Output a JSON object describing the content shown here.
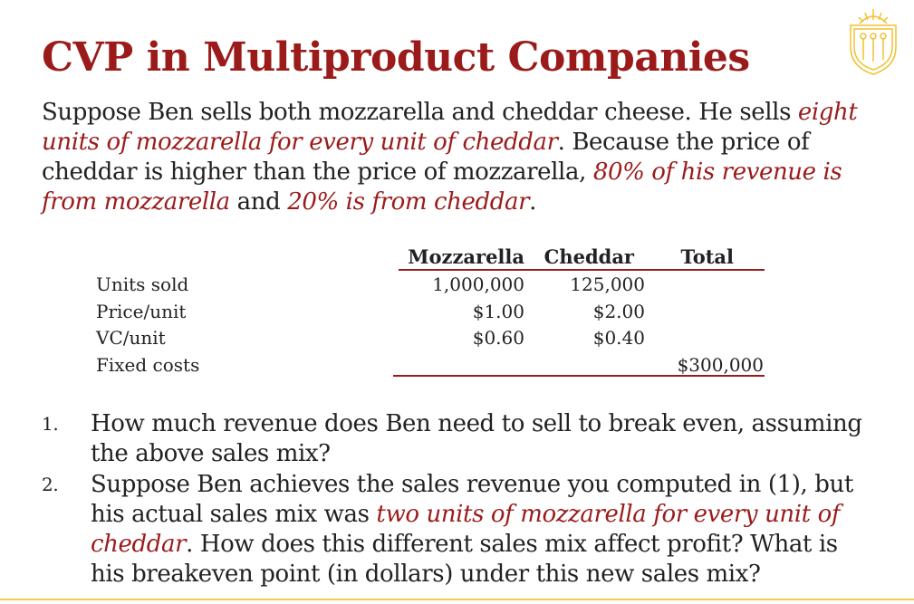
{
  "colors": {
    "accent": "#9b1b1b",
    "text": "#222222",
    "logo_gold": "#f2c230",
    "bottom_rule": "#f2c94c"
  },
  "slide": {
    "title": "CVP in Multiproduct Companies",
    "logo_icon": "university-seal-icon",
    "intro": {
      "t1": "Suppose Ben sells both mozzarella and cheddar cheese. He sells ",
      "e1": "eight units of mozzarella for every unit of cheddar",
      "t2": ". Because the price of cheddar is higher than the price of mozzarella, ",
      "e2": "80% of his revenue is from mozzarella",
      "t3": " and ",
      "e3": "20% is from cheddar",
      "t4": "."
    },
    "table": {
      "headers": [
        "Mozzarella",
        "Cheddar",
        "Total"
      ],
      "rows": [
        {
          "label": "Units sold",
          "mozzarella": "1,000,000",
          "cheddar": "125,000",
          "total": ""
        },
        {
          "label": "Price/unit",
          "mozzarella": "$1.00",
          "cheddar": "$2.00",
          "total": ""
        },
        {
          "label": "VC/unit",
          "mozzarella": "$0.60",
          "cheddar": "$0.40",
          "total": ""
        },
        {
          "label": "Fixed costs",
          "mozzarella": "",
          "cheddar": "",
          "total": "$300,000"
        }
      ]
    },
    "questions": [
      {
        "number": "1.",
        "t1": "How much revenue does Ben need to sell to break even, assuming the above sales mix?"
      },
      {
        "number": "2.",
        "t1": "Suppose Ben achieves the sales revenue you computed in (1), but his actual sales mix was ",
        "e1": "two units of mozzarella for every unit of cheddar",
        "t2": ". How does this different sales mix affect profit? What is his breakeven point (in dollars) under this new sales mix?"
      }
    ]
  }
}
